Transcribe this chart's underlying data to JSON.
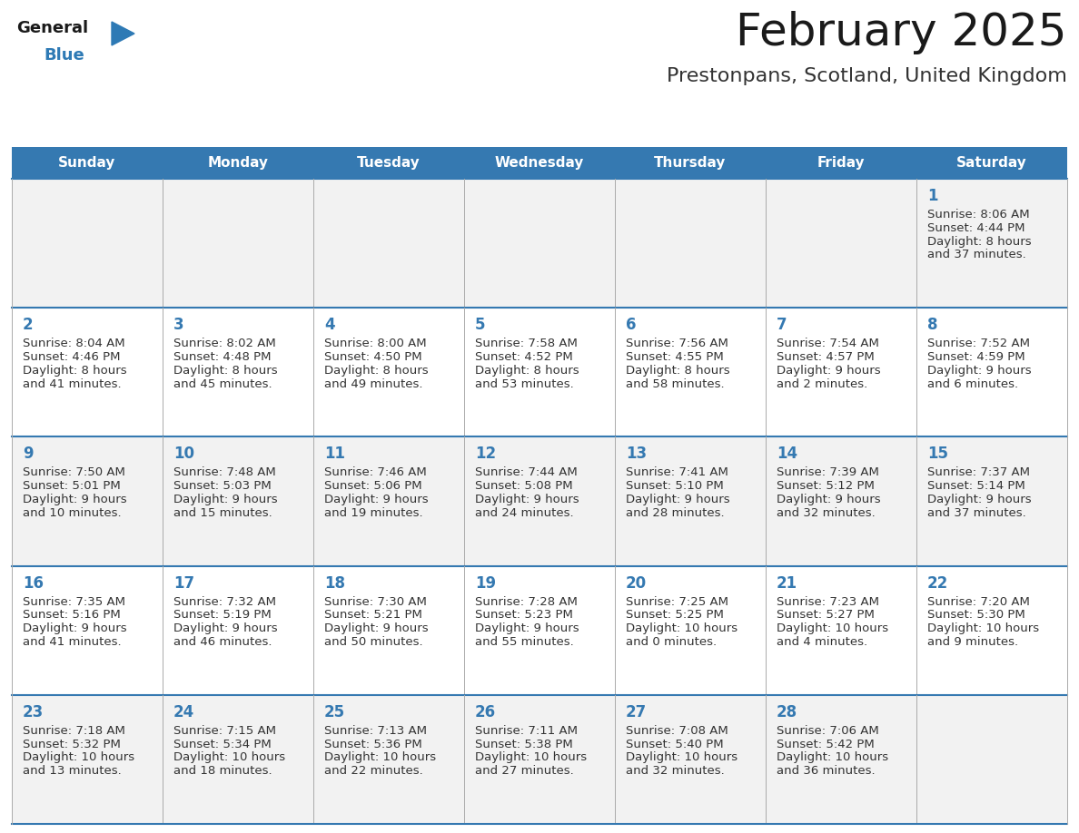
{
  "title": "February 2025",
  "subtitle": "Prestonpans, Scotland, United Kingdom",
  "days_of_week": [
    "Sunday",
    "Monday",
    "Tuesday",
    "Wednesday",
    "Thursday",
    "Friday",
    "Saturday"
  ],
  "header_color": "#3579b1",
  "header_text_color": "#ffffff",
  "cell_bg_even": "#f2f2f2",
  "cell_bg_odd": "#ffffff",
  "cell_border_color": "#aaaaaa",
  "row_border_color": "#3579b1",
  "day_num_color": "#3579b1",
  "info_text_color": "#333333",
  "title_color": "#1a1a1a",
  "subtitle_color": "#333333",
  "logo_general_color": "#1a1a1a",
  "logo_blue_color": "#2e7ab5",
  "background_color": "#ffffff",
  "calendar": [
    [
      null,
      null,
      null,
      null,
      null,
      null,
      1
    ],
    [
      2,
      3,
      4,
      5,
      6,
      7,
      8
    ],
    [
      9,
      10,
      11,
      12,
      13,
      14,
      15
    ],
    [
      16,
      17,
      18,
      19,
      20,
      21,
      22
    ],
    [
      23,
      24,
      25,
      26,
      27,
      28,
      null
    ]
  ],
  "cell_data": {
    "1": {
      "sunrise": "8:06 AM",
      "sunset": "4:44 PM",
      "daylight_line1": "Daylight: 8 hours",
      "daylight_line2": "and 37 minutes."
    },
    "2": {
      "sunrise": "8:04 AM",
      "sunset": "4:46 PM",
      "daylight_line1": "Daylight: 8 hours",
      "daylight_line2": "and 41 minutes."
    },
    "3": {
      "sunrise": "8:02 AM",
      "sunset": "4:48 PM",
      "daylight_line1": "Daylight: 8 hours",
      "daylight_line2": "and 45 minutes."
    },
    "4": {
      "sunrise": "8:00 AM",
      "sunset": "4:50 PM",
      "daylight_line1": "Daylight: 8 hours",
      "daylight_line2": "and 49 minutes."
    },
    "5": {
      "sunrise": "7:58 AM",
      "sunset": "4:52 PM",
      "daylight_line1": "Daylight: 8 hours",
      "daylight_line2": "and 53 minutes."
    },
    "6": {
      "sunrise": "7:56 AM",
      "sunset": "4:55 PM",
      "daylight_line1": "Daylight: 8 hours",
      "daylight_line2": "and 58 minutes."
    },
    "7": {
      "sunrise": "7:54 AM",
      "sunset": "4:57 PM",
      "daylight_line1": "Daylight: 9 hours",
      "daylight_line2": "and 2 minutes."
    },
    "8": {
      "sunrise": "7:52 AM",
      "sunset": "4:59 PM",
      "daylight_line1": "Daylight: 9 hours",
      "daylight_line2": "and 6 minutes."
    },
    "9": {
      "sunrise": "7:50 AM",
      "sunset": "5:01 PM",
      "daylight_line1": "Daylight: 9 hours",
      "daylight_line2": "and 10 minutes."
    },
    "10": {
      "sunrise": "7:48 AM",
      "sunset": "5:03 PM",
      "daylight_line1": "Daylight: 9 hours",
      "daylight_line2": "and 15 minutes."
    },
    "11": {
      "sunrise": "7:46 AM",
      "sunset": "5:06 PM",
      "daylight_line1": "Daylight: 9 hours",
      "daylight_line2": "and 19 minutes."
    },
    "12": {
      "sunrise": "7:44 AM",
      "sunset": "5:08 PM",
      "daylight_line1": "Daylight: 9 hours",
      "daylight_line2": "and 24 minutes."
    },
    "13": {
      "sunrise": "7:41 AM",
      "sunset": "5:10 PM",
      "daylight_line1": "Daylight: 9 hours",
      "daylight_line2": "and 28 minutes."
    },
    "14": {
      "sunrise": "7:39 AM",
      "sunset": "5:12 PM",
      "daylight_line1": "Daylight: 9 hours",
      "daylight_line2": "and 32 minutes."
    },
    "15": {
      "sunrise": "7:37 AM",
      "sunset": "5:14 PM",
      "daylight_line1": "Daylight: 9 hours",
      "daylight_line2": "and 37 minutes."
    },
    "16": {
      "sunrise": "7:35 AM",
      "sunset": "5:16 PM",
      "daylight_line1": "Daylight: 9 hours",
      "daylight_line2": "and 41 minutes."
    },
    "17": {
      "sunrise": "7:32 AM",
      "sunset": "5:19 PM",
      "daylight_line1": "Daylight: 9 hours",
      "daylight_line2": "and 46 minutes."
    },
    "18": {
      "sunrise": "7:30 AM",
      "sunset": "5:21 PM",
      "daylight_line1": "Daylight: 9 hours",
      "daylight_line2": "and 50 minutes."
    },
    "19": {
      "sunrise": "7:28 AM",
      "sunset": "5:23 PM",
      "daylight_line1": "Daylight: 9 hours",
      "daylight_line2": "and 55 minutes."
    },
    "20": {
      "sunrise": "7:25 AM",
      "sunset": "5:25 PM",
      "daylight_line1": "Daylight: 10 hours",
      "daylight_line2": "and 0 minutes."
    },
    "21": {
      "sunrise": "7:23 AM",
      "sunset": "5:27 PM",
      "daylight_line1": "Daylight: 10 hours",
      "daylight_line2": "and 4 minutes."
    },
    "22": {
      "sunrise": "7:20 AM",
      "sunset": "5:30 PM",
      "daylight_line1": "Daylight: 10 hours",
      "daylight_line2": "and 9 minutes."
    },
    "23": {
      "sunrise": "7:18 AM",
      "sunset": "5:32 PM",
      "daylight_line1": "Daylight: 10 hours",
      "daylight_line2": "and 13 minutes."
    },
    "24": {
      "sunrise": "7:15 AM",
      "sunset": "5:34 PM",
      "daylight_line1": "Daylight: 10 hours",
      "daylight_line2": "and 18 minutes."
    },
    "25": {
      "sunrise": "7:13 AM",
      "sunset": "5:36 PM",
      "daylight_line1": "Daylight: 10 hours",
      "daylight_line2": "and 22 minutes."
    },
    "26": {
      "sunrise": "7:11 AM",
      "sunset": "5:38 PM",
      "daylight_line1": "Daylight: 10 hours",
      "daylight_line2": "and 27 minutes."
    },
    "27": {
      "sunrise": "7:08 AM",
      "sunset": "5:40 PM",
      "daylight_line1": "Daylight: 10 hours",
      "daylight_line2": "and 32 minutes."
    },
    "28": {
      "sunrise": "7:06 AM",
      "sunset": "5:42 PM",
      "daylight_line1": "Daylight: 10 hours",
      "daylight_line2": "and 36 minutes."
    }
  }
}
